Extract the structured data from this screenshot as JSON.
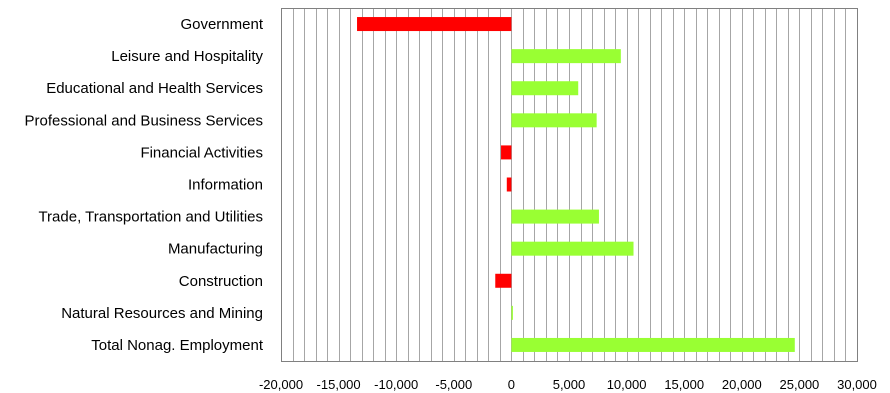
{
  "chart_data": {
    "type": "bar",
    "orientation": "horizontal",
    "categories": [
      "Government",
      "Leisure and Hospitality",
      "Educational and Health Services",
      "Professional and Business Services",
      "Financial Activities",
      "Information",
      "Trade, Transportation and Utilities",
      "Manufacturing",
      "Construction",
      "Natural Resources and Mining",
      "Total Nonag. Employment"
    ],
    "values": [
      -13400,
      9500,
      5800,
      7400,
      -900,
      -400,
      7600,
      10600,
      -1400,
      100,
      24600
    ],
    "xlim": [
      -20000,
      30000
    ],
    "x_ticks": [
      -20000,
      -15000,
      -10000,
      -5000,
      0,
      5000,
      10000,
      15000,
      20000,
      25000,
      30000
    ],
    "x_tick_labels": [
      "-20,000",
      "-15,000",
      "-10,000",
      "-5,000",
      "0",
      "5,000",
      "10,000",
      "15,000",
      "20,000",
      "25,000",
      "30,000"
    ],
    "minor_grid_step": 1000,
    "grid": true,
    "legend": "none",
    "title": "",
    "xlabel": "",
    "ylabel": "",
    "colors": {
      "positive": "#99ff33",
      "negative": "#ff0000",
      "grid": "#a6a6a6",
      "frame": "#808080"
    }
  }
}
